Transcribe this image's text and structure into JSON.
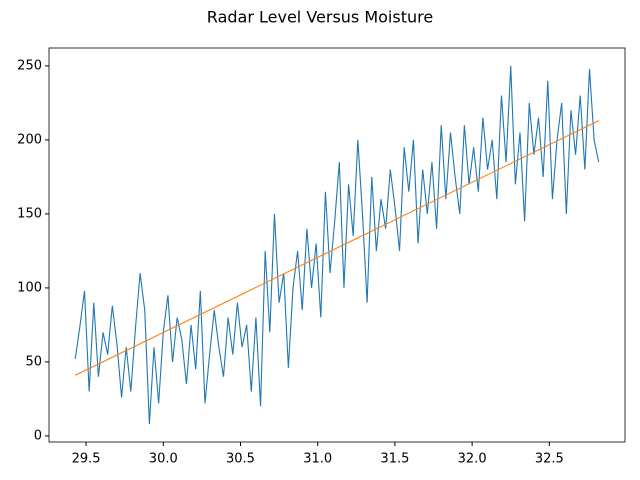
{
  "chart_data": {
    "type": "line",
    "title": "Radar Level Versus Moisture",
    "xlim": [
      29.26,
      32.99
    ],
    "ylim": [
      -4.1,
      262.1
    ],
    "xticks": [
      29.5,
      {
        "value": 30,
        "label": "30.0"
      },
      30.5,
      {
        "value": 31,
        "label": "31.0"
      },
      31.5,
      {
        "value": 32,
        "label": "32.0"
      },
      32.5
    ],
    "yticks": [
      0,
      50,
      100,
      150,
      200,
      250
    ],
    "series": [
      {
        "color": "#1f77b4",
        "x": [
          29.43,
          29.46,
          29.49,
          29.52,
          29.55,
          29.58,
          29.61,
          29.64,
          29.67,
          29.7,
          29.73,
          29.76,
          29.79,
          29.82,
          29.85,
          29.88,
          29.91,
          29.94,
          29.97,
          30.0,
          30.03,
          30.06,
          30.09,
          30.12,
          30.15,
          30.18,
          30.21,
          30.24,
          30.27,
          30.3,
          30.33,
          30.36,
          30.39,
          30.42,
          30.45,
          30.48,
          30.51,
          30.54,
          30.57,
          30.6,
          30.63,
          30.66,
          30.69,
          30.72,
          30.75,
          30.78,
          30.81,
          30.84,
          30.87,
          30.9,
          30.93,
          30.96,
          30.99,
          31.02,
          31.05,
          31.08,
          31.11,
          31.14,
          31.17,
          31.2,
          31.23,
          31.26,
          31.29,
          31.32,
          31.35,
          31.38,
          31.41,
          31.44,
          31.47,
          31.5,
          31.53,
          31.56,
          31.59,
          31.62,
          31.65,
          31.68,
          31.71,
          31.74,
          31.77,
          31.8,
          31.83,
          31.86,
          31.89,
          31.92,
          31.95,
          31.98,
          32.01,
          32.04,
          32.07,
          32.1,
          32.13,
          32.16,
          32.19,
          32.22,
          32.25,
          32.28,
          32.31,
          32.34,
          32.37,
          32.4,
          32.43,
          32.46,
          32.49,
          32.52,
          32.55,
          32.58,
          32.61,
          32.64,
          32.67,
          32.7,
          32.73,
          32.76,
          32.79,
          32.82
        ],
        "values": [
          52,
          74,
          98,
          30,
          90,
          40,
          70,
          55,
          88,
          62,
          26,
          60,
          30,
          73,
          110,
          85,
          8,
          60,
          22,
          70,
          95,
          50,
          80,
          65,
          35,
          75,
          45,
          98,
          22,
          55,
          85,
          60,
          40,
          80,
          55,
          90,
          60,
          75,
          30,
          80,
          20,
          125,
          70,
          150,
          90,
          110,
          46,
          100,
          125,
          85,
          140,
          100,
          130,
          80,
          165,
          110,
          145,
          185,
          100,
          170,
          135,
          200,
          150,
          90,
          175,
          125,
          160,
          140,
          180,
          155,
          125,
          195,
          165,
          200,
          130,
          180,
          150,
          185,
          140,
          210,
          160,
          205,
          175,
          150,
          210,
          170,
          195,
          165,
          215,
          180,
          200,
          160,
          230,
          185,
          250,
          170,
          205,
          145,
          225,
          190,
          215,
          175,
          240,
          160,
          200,
          225,
          150,
          220,
          190,
          230,
          180,
          248,
          200,
          185
        ]
      },
      {
        "color": "#ff7f0e",
        "x": [
          29.43,
          32.82
        ],
        "values": [
          41,
          213
        ]
      }
    ]
  }
}
